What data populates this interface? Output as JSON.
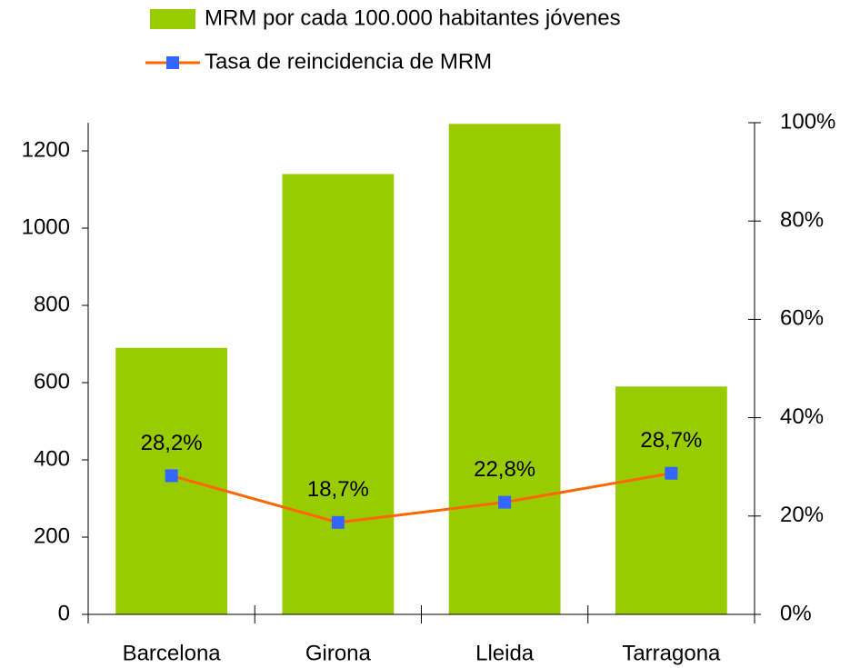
{
  "chart_data": {
    "type": "bar",
    "categories": [
      "Barcelona",
      "Girona",
      "Lleida",
      "Tarragona"
    ],
    "series": [
      {
        "name": "MRM por cada 100.000 habitantes jóvenes",
        "type": "bar",
        "color": "#99cc00",
        "values": [
          690,
          1140,
          1270,
          590
        ]
      },
      {
        "name": "Tasa de reincidencia de MRM",
        "type": "line",
        "axis": "y2",
        "color": "#ff6600",
        "marker_color": "#3366ff",
        "values": [
          28.2,
          18.7,
          22.8,
          28.7
        ],
        "value_labels": [
          "28,2%",
          "18,7%",
          "22,8%",
          "28,7%"
        ]
      }
    ],
    "ylim": [
      0,
      1273
    ],
    "yticks": [
      0,
      200,
      400,
      600,
      800,
      1000,
      1200
    ],
    "y2lim": [
      0,
      100
    ],
    "y2ticks": [
      {
        "value": 0,
        "label": "0%"
      },
      {
        "value": 20,
        "label": "20%"
      },
      {
        "value": 40,
        "label": "40%"
      },
      {
        "value": 60,
        "label": "60%"
      },
      {
        "value": 80,
        "label": "80%"
      },
      {
        "value": 100,
        "label": "100%"
      }
    ],
    "legend": "top"
  }
}
